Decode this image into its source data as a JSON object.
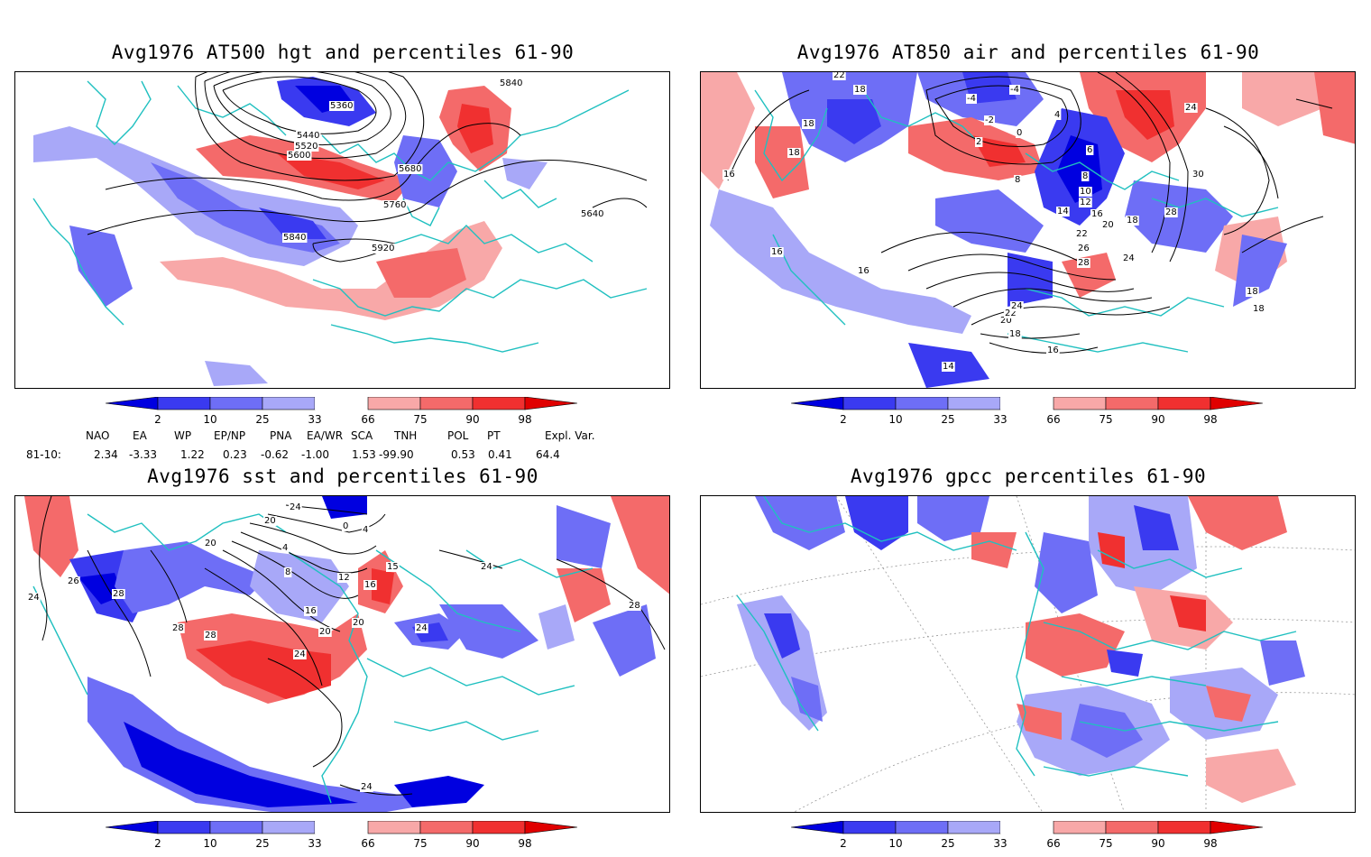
{
  "panels": [
    {
      "id": "hgt",
      "title": "Avg1976 AT500 hgt and percentiles 61-90",
      "contour_labels": [
        "5360",
        "5440",
        "5520",
        "5600",
        "5680",
        "5760",
        "5840",
        "5920",
        "5840",
        "5640"
      ]
    },
    {
      "id": "air",
      "title": "Avg1976 AT850 air and percentiles 61-90",
      "contour_labels": [
        "22",
        "18",
        "18",
        "18",
        "16",
        "16",
        "16",
        "-4",
        "-4",
        "-2",
        "0",
        "2",
        "4",
        "6",
        "8",
        "8",
        "10",
        "12",
        "14",
        "16",
        "18",
        "20",
        "22",
        "24",
        "26",
        "28",
        "30",
        "28",
        "24",
        "20",
        "22",
        "24",
        "16",
        "18",
        "18",
        "18",
        "14"
      ]
    },
    {
      "id": "sst",
      "title": "Avg1976 sst and percentiles 61-90",
      "contour_labels": [
        "26",
        "28",
        "28",
        "24",
        "20",
        "28",
        "24",
        "20",
        "16",
        "12",
        "8",
        "4",
        "4",
        "0",
        "20",
        "16",
        "20",
        "24",
        "24",
        "24",
        "24",
        "28",
        "15"
      ]
    },
    {
      "id": "gpcc",
      "title": "Avg1976 gpcc percentiles 61-90",
      "contour_labels": []
    }
  ],
  "colorbar": {
    "labels": [
      "2",
      "10",
      "25",
      "33",
      "66",
      "75",
      "90",
      "98"
    ],
    "colors": {
      "below": "#0000e0",
      "2_10": "#3a3af0",
      "10_25": "#6e6ef6",
      "25_33": "#a8a8f8",
      "66_75": "#f8a8a8",
      "75_90": "#f46a6a",
      "90_98": "#f03030",
      "above": "#e00000"
    }
  },
  "indices": {
    "headers": [
      "NAO",
      "EA",
      "WP",
      "EP/NP",
      "PNA",
      "EA/WR",
      "SCA",
      "TNH",
      "POL",
      "PT",
      "Expl. Var."
    ],
    "row_label": "81-10:",
    "values": [
      "2.34",
      "-3.33",
      "1.22",
      "0.23",
      "-0.62",
      "-1.00",
      "1.53",
      "-99.90",
      "0.53",
      "0.41",
      "64.4"
    ]
  },
  "map_colors": {
    "land": "#20c0c0",
    "contour": "#000000"
  }
}
